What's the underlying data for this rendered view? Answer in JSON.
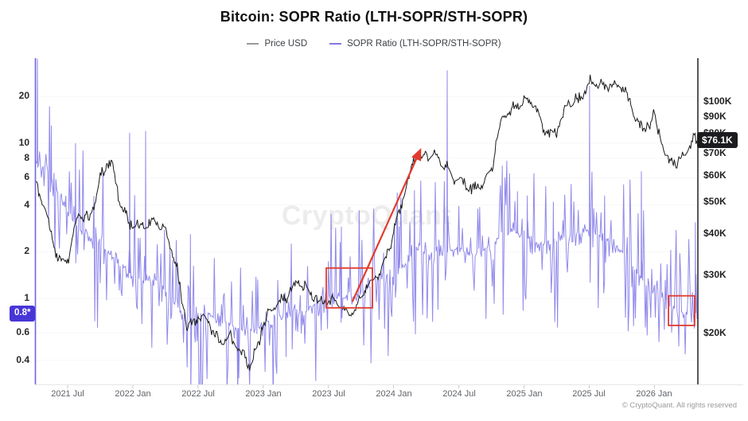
{
  "title": "Bitcoin: SOPR Ratio (LTH-SOPR/STH-SOPR)",
  "watermark": "CryptoQuant",
  "copyright": "© CryptoQuant. All rights reserved",
  "legend": [
    {
      "label": "Price USD",
      "color": "#999999"
    },
    {
      "label": "SOPR Ratio (LTH-SOPR/STH-SOPR)",
      "color": "#8279e8"
    }
  ],
  "badges": {
    "sopr_current": "0.8*",
    "price_current": "$76.1K"
  },
  "colors": {
    "price_line": "#1b1b1b",
    "sopr_line": "#8279e8",
    "accent_red": "#e23b2e",
    "sopr_badge_bg": "#4736d6",
    "price_badge_bg": "#1c1c1e",
    "axis_left": "#6f61e2",
    "axis_right": "#2f2f2f",
    "x_tick": "#c9c9c9",
    "baseline": "#e6e6e6"
  },
  "chart_data": {
    "type": "line",
    "title": "Bitcoin: SOPR Ratio (LTH-SOPR/STH-SOPR)",
    "x_start_month": "2021-04",
    "x_end_month": "2026-05",
    "x_ticks": [
      {
        "label": "2021 Jul",
        "t": 3
      },
      {
        "label": "2022 Jan",
        "t": 9
      },
      {
        "label": "2022 Jul",
        "t": 15
      },
      {
        "label": "2023 Jan",
        "t": 21
      },
      {
        "label": "2023 Jul",
        "t": 27
      },
      {
        "label": "2024 Jan",
        "t": 33
      },
      {
        "label": "2024 Jul",
        "t": 39
      },
      {
        "label": "2025 Jan",
        "t": 45
      },
      {
        "label": "2025 Jul",
        "t": 51
      },
      {
        "label": "2026 Jan",
        "t": 57
      }
    ],
    "left_axis": {
      "name": "SOPR Ratio (LTH-SOPR/STH-SOPR)",
      "scale": "log",
      "current_value": 0.8,
      "ticks": [
        {
          "label": "20",
          "v": 20
        },
        {
          "label": "10",
          "v": 10
        },
        {
          "label": "8",
          "v": 8
        },
        {
          "label": "6",
          "v": 6
        },
        {
          "label": "4",
          "v": 4
        },
        {
          "label": "2",
          "v": 2
        },
        {
          "label": "1",
          "v": 1
        },
        {
          "label": "0.6",
          "v": 0.6
        },
        {
          "label": "0.4",
          "v": 0.4
        }
      ]
    },
    "right_axis": {
      "name": "Price USD",
      "scale": "log",
      "current_value": 76.1,
      "ticks": [
        {
          "label": "$100K",
          "v": 100
        },
        {
          "label": "$90K",
          "v": 90
        },
        {
          "label": "$80K",
          "v": 80
        },
        {
          "label": "$70K",
          "v": 70
        },
        {
          "label": "$60K",
          "v": 60
        },
        {
          "label": "$50K",
          "v": 50
        },
        {
          "label": "$40K",
          "v": 40
        },
        {
          "label": "$30K",
          "v": 30
        },
        {
          "label": "$20K",
          "v": 20
        }
      ]
    },
    "series": [
      {
        "name": "SOPR Ratio (LTH-SOPR/STH-SOPR)",
        "axis": "left",
        "monthly_values": [
          7.5,
          7,
          5,
          3.6,
          2.8,
          2.5,
          2.2,
          1.9,
          1.6,
          1.4,
          1.3,
          1.35,
          1.1,
          0.9,
          0.75,
          0.72,
          0.78,
          0.72,
          0.7,
          0.62,
          0.62,
          0.68,
          0.75,
          0.8,
          0.85,
          0.82,
          0.95,
          1.05,
          1.0,
          1.0,
          1.1,
          1.25,
          1.4,
          1.45,
          1.7,
          2.1,
          1.9,
          1.8,
          2.0,
          2.1,
          1.9,
          2.0,
          2.2,
          2.6,
          2.7,
          2.5,
          2.3,
          2.2,
          2.3,
          2.5,
          2.6,
          2.7,
          2.5,
          2.3,
          2.0,
          1.6,
          1.3,
          1.1,
          0.9,
          0.85,
          0.82,
          0.8
        ],
        "spikes": [
          {
            "t": 0.22,
            "v": 35
          },
          {
            "t": 1.5,
            "v": 13
          },
          {
            "t": 3.73,
            "v": 10
          },
          {
            "t": 8.71,
            "v": 11.7
          },
          {
            "t": 10.18,
            "v": 12
          },
          {
            "t": 14.3,
            "v": 2.6
          },
          {
            "t": 18.7,
            "v": 0.33
          },
          {
            "t": 23.1,
            "v": 0.42
          },
          {
            "t": 28.19,
            "v": 2.9
          },
          {
            "t": 33.5,
            "v": 2.9
          },
          {
            "t": 37.93,
            "v": 29.5
          },
          {
            "t": 44.4,
            "v": 4.9
          },
          {
            "t": 45.3,
            "v": 4.6
          },
          {
            "t": 47.7,
            "v": 4.2
          },
          {
            "t": 51.03,
            "v": 23.4
          },
          {
            "t": 52.42,
            "v": 4.6
          },
          {
            "t": 55.8,
            "v": 6.6
          },
          {
            "t": 60.77,
            "v": 3.1
          }
        ]
      },
      {
        "name": "Price USD",
        "axis": "right",
        "monthly_values": [
          56,
          46,
          35,
          33,
          45,
          46,
          58,
          65,
          49,
          42,
          41,
          45,
          41,
          31,
          21.5,
          22.5,
          21,
          19.5,
          19.5,
          16.8,
          16.8,
          21.5,
          23.5,
          26.5,
          28.5,
          26.5,
          25.5,
          25,
          24,
          23.5,
          25.5,
          28,
          33,
          40,
          52,
          71,
          68,
          66,
          64,
          58,
          53,
          58,
          62,
          88,
          98,
          100,
          95,
          84,
          80,
          96,
          104,
          112,
          110,
          116,
          111,
          92,
          85,
          90,
          67,
          67,
          71,
          76.1
        ],
        "spikes": []
      }
    ],
    "annotations": {
      "boxes": [
        {
          "axis": "left",
          "t1": 26.8,
          "v1": 1.57,
          "t2": 31.05,
          "v2": 0.87
        },
        {
          "axis": "left",
          "t1": 58.3,
          "v1": 1.04,
          "t2": 60.7,
          "v2": 0.67
        }
      ],
      "arrow": {
        "axis": "right",
        "t1": 29.2,
        "v1": 25.0,
        "t2": 35.44,
        "v2": 71.4
      }
    }
  }
}
